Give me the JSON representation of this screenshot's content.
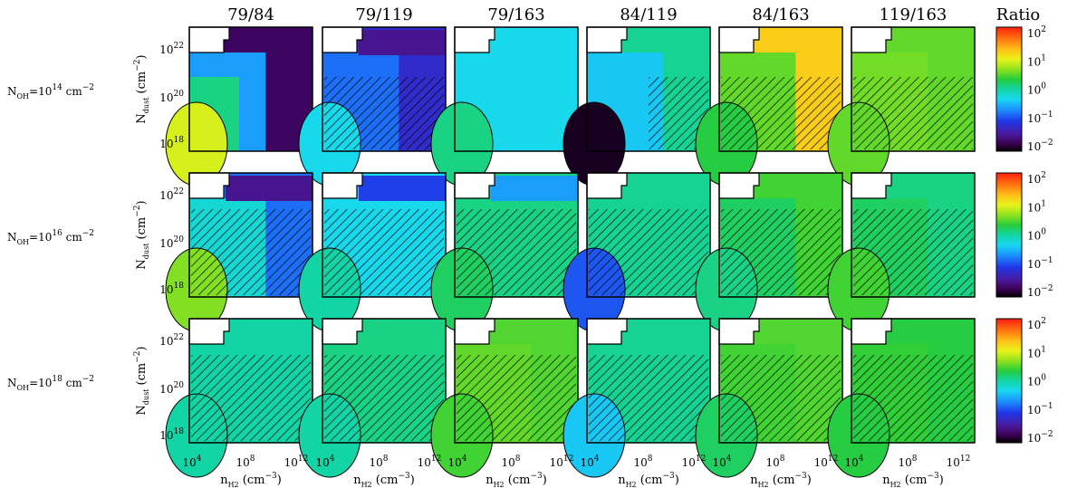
{
  "chart_data": {
    "type": "heatmap",
    "column_titles": [
      "79/84",
      "79/119",
      "79/163",
      "84/119",
      "84/163",
      "119/163"
    ],
    "row_labels": [
      {
        "main": "N",
        "sub": "OH",
        "eq": "=10",
        "exp": "14",
        "unit": " cm",
        "unit_exp": "−2"
      },
      {
        "main": "N",
        "sub": "OH",
        "eq": "=10",
        "exp": "16",
        "unit": " cm",
        "unit_exp": "−2"
      },
      {
        "main": "N",
        "sub": "OH",
        "eq": "=10",
        "exp": "18",
        "unit": " cm",
        "unit_exp": "−2"
      }
    ],
    "xlabel": {
      "main": "n",
      "sub": "H2",
      "rest": " (cm",
      "exp": "−3",
      "close": ")"
    },
    "ylabel": {
      "main": "N",
      "sub": "dust",
      "rest": " (cm",
      "exp": "−2",
      "close": ")"
    },
    "x_scale": "log",
    "y_scale": "log",
    "x_ticks": [
      {
        "base": "10",
        "exp": "4"
      },
      {
        "base": "10",
        "exp": "8"
      },
      {
        "base": "10",
        "exp": "12"
      }
    ],
    "y_ticks": [
      {
        "base": "10",
        "exp": "18"
      },
      {
        "base": "10",
        "exp": "20"
      },
      {
        "base": "10",
        "exp": "22"
      }
    ],
    "colorbar": {
      "title": "Ratio",
      "scale": "log",
      "range": [
        0.01,
        100
      ],
      "ticks": [
        {
          "base": "10",
          "exp": "2"
        },
        {
          "base": "10",
          "exp": "1"
        },
        {
          "base": "10",
          "exp": "0"
        },
        {
          "base": "10",
          "exp": "−1"
        },
        {
          "base": "10",
          "exp": "−2"
        }
      ]
    },
    "hatched_region_meaning": "",
    "panels": [
      [
        {
          "col": "79/84",
          "log_ratio_levels": {
            "lowleft": 0.9,
            "midleft": 0.1,
            "center": -0.6,
            "right": -1.7
          }
        },
        {
          "col": "79/119",
          "log_ratio_levels": {
            "lowleft": -0.3,
            "center": -0.8,
            "right": -1.2,
            "top": -1.5
          }
        },
        {
          "col": "79/163",
          "log_ratio_levels": {
            "lowleft": 0.1,
            "center": -0.3,
            "right": -0.3
          }
        },
        {
          "col": "84/119",
          "log_ratio_levels": {
            "lowleft": -1.9,
            "center": -0.4,
            "right": 0.05
          }
        },
        {
          "col": "84/163",
          "log_ratio_levels": {
            "lowleft": 0.3,
            "center": 0.5,
            "right": 1.2
          }
        },
        {
          "col": "119/163",
          "log_ratio_levels": {
            "lowleft": 0.5,
            "center": 0.55,
            "right": 0.5
          }
        }
      ],
      [
        {
          "col": "79/84",
          "log_ratio_levels": {
            "lowleft": 0.6,
            "center": -0.2,
            "right": -0.8,
            "top": -1.5
          }
        },
        {
          "col": "79/119",
          "log_ratio_levels": {
            "lowleft": 0.0,
            "center": -0.3,
            "top": -1.0
          }
        },
        {
          "col": "79/163",
          "log_ratio_levels": {
            "lowleft": 0.2,
            "center": 0.1,
            "top": -0.6
          }
        },
        {
          "col": "84/119",
          "log_ratio_levels": {
            "lowleft": -0.9,
            "center": 0.05,
            "right": 0.05
          }
        },
        {
          "col": "84/163",
          "log_ratio_levels": {
            "lowleft": 0.1,
            "center": 0.2,
            "right": 0.4
          }
        },
        {
          "col": "119/163",
          "log_ratio_levels": {
            "lowleft": 0.4,
            "center": 0.2,
            "right": 0.1
          }
        }
      ],
      [
        {
          "col": "79/84",
          "log_ratio_levels": {
            "lowleft": 0.0,
            "center": 0.0,
            "right": 0.0
          }
        },
        {
          "col": "79/119",
          "log_ratio_levels": {
            "lowleft": 0.0,
            "center": 0.1,
            "right": 0.1
          }
        },
        {
          "col": "79/163",
          "log_ratio_levels": {
            "lowleft": 0.4,
            "center": 0.5,
            "right": 0.45
          }
        },
        {
          "col": "84/119",
          "log_ratio_levels": {
            "lowleft": -0.4,
            "center": 0.05,
            "right": 0.05
          }
        },
        {
          "col": "84/163",
          "log_ratio_levels": {
            "lowleft": 0.2,
            "center": 0.4,
            "right": 0.45
          }
        },
        {
          "col": "119/163",
          "log_ratio_levels": {
            "lowleft": 0.3,
            "center": 0.35,
            "right": 0.3
          }
        }
      ]
    ]
  }
}
